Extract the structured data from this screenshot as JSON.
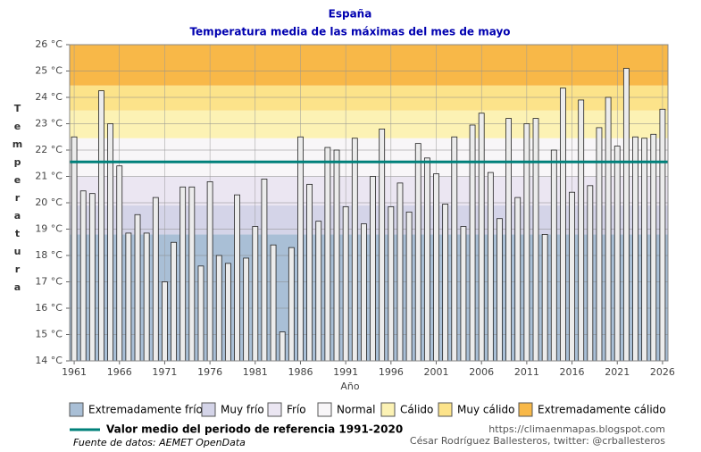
{
  "chart_data": {
    "type": "bar",
    "title": "España",
    "subtitle": "Temperatura media de las máximas del mes de mayo",
    "xlabel": "Año",
    "ylabel": "Temperatura",
    "x": [
      1961,
      1962,
      1963,
      1964,
      1965,
      1966,
      1967,
      1968,
      1969,
      1970,
      1971,
      1972,
      1973,
      1974,
      1975,
      1976,
      1977,
      1978,
      1979,
      1980,
      1981,
      1982,
      1983,
      1984,
      1985,
      1986,
      1987,
      1988,
      1989,
      1990,
      1991,
      1992,
      1993,
      1994,
      1995,
      1996,
      1997,
      1998,
      1999,
      2000,
      2001,
      2002,
      2003,
      2004,
      2005,
      2006,
      2007,
      2008,
      2009,
      2010,
      2011,
      2012,
      2013,
      2014,
      2015,
      2016,
      2017,
      2018,
      2019,
      2020,
      2021,
      2022,
      2023,
      2024,
      2025,
      2026
    ],
    "values": [
      22.5,
      20.45,
      20.35,
      24.25,
      23.0,
      21.4,
      18.85,
      19.55,
      18.85,
      20.2,
      17.0,
      18.5,
      20.6,
      20.6,
      17.6,
      20.8,
      18.0,
      17.7,
      20.3,
      17.9,
      19.1,
      20.9,
      18.4,
      15.1,
      18.3,
      22.5,
      20.7,
      19.3,
      22.1,
      22.0,
      19.85,
      22.45,
      19.2,
      21.0,
      22.8,
      19.85,
      20.75,
      19.65,
      22.25,
      21.7,
      21.1,
      19.95,
      22.5,
      19.1,
      22.95,
      23.4,
      21.15,
      19.4,
      23.2,
      20.2,
      23.0,
      23.2,
      18.8,
      22.0,
      24.35,
      20.4,
      23.9,
      20.65,
      22.85,
      24.0,
      22.15,
      25.1,
      22.5,
      22.45,
      22.6,
      23.55
    ],
    "color": "#ececec",
    "xlim": [
      1960.5,
      2026.6
    ],
    "xticks": [
      1961,
      1966,
      1971,
      1976,
      1981,
      1986,
      1991,
      1996,
      2001,
      2006,
      2011,
      2016,
      2021,
      2026
    ],
    "ylim": [
      14,
      26
    ],
    "yticks": [
      {
        "value": 14,
        "label": "14 °C"
      },
      {
        "value": 15,
        "label": "15 °C"
      },
      {
        "value": 16,
        "label": "16 °C"
      },
      {
        "value": 17,
        "label": "17 °C"
      },
      {
        "value": 18,
        "label": "18 °C"
      },
      {
        "value": 19,
        "label": "19 °C"
      },
      {
        "value": 20,
        "label": "20 °C"
      },
      {
        "value": 21,
        "label": "21 °C"
      },
      {
        "value": 22,
        "label": "22 °C"
      },
      {
        "value": 23,
        "label": "23 °C"
      },
      {
        "value": 24,
        "label": "24 °C"
      },
      {
        "value": 25,
        "label": "25 °C"
      },
      {
        "value": 26,
        "label": "26 °C"
      }
    ],
    "grid": true,
    "bands": [
      {
        "name": "Extremadamente frío",
        "color": "#a9bfd6",
        "from": 14,
        "to": 18.8
      },
      {
        "name": "Muy frío",
        "color": "#d4d4e8",
        "from": 18.8,
        "to": 19.9
      },
      {
        "name": "Frío",
        "color": "#ebe6f2",
        "from": 19.9,
        "to": 21.0
      },
      {
        "name": "Normal",
        "color": "#f8f6f8",
        "from": 21.0,
        "to": 22.45
      },
      {
        "name": "Cálido",
        "color": "#fcf2b4",
        "from": 22.45,
        "to": 23.5
      },
      {
        "name": "Muy cálido",
        "color": "#fce38a",
        "from": 23.5,
        "to": 24.45
      },
      {
        "name": "Extremadamente cálido",
        "color": "#f8b848",
        "from": 24.45,
        "to": 26
      }
    ],
    "reference": {
      "name": "Valor medio del periodo de referencia 1991-2020",
      "value": 21.55,
      "color": "#00807a"
    },
    "source": "Fuente de datos: AEMET OpenData",
    "credit_url": "https://climaenmapas.blogspot.com",
    "credit_author": "César Rodríguez Ballesteros, twitter: @crballesteros"
  }
}
